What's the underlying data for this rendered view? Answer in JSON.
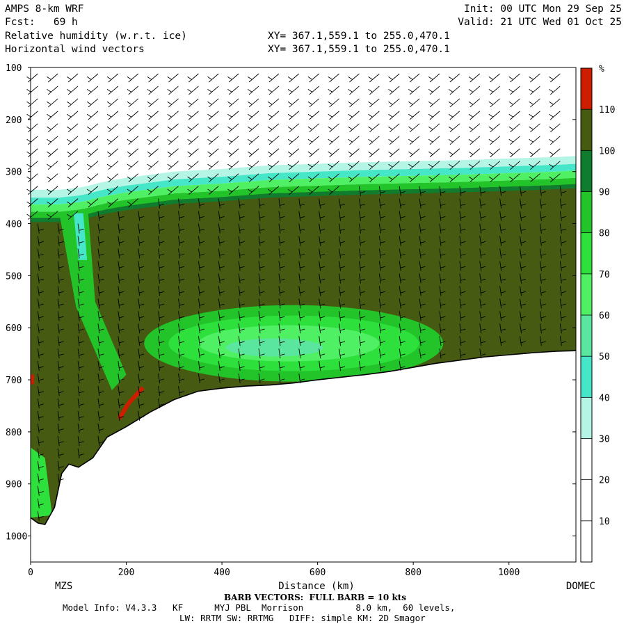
{
  "header": {
    "model": "AMPS 8-km WRF",
    "fcst": "Fcst:   69 h",
    "init": "Init: 00 UTC Mon 29 Sep 25",
    "valid": "Valid: 21 UTC Wed 01 Oct 25",
    "field1": "Relative humidity (w.r.t. ice)",
    "field2": "Horizontal wind vectors",
    "xy1": "XY= 367.1,559.1 to 255.0,470.1",
    "xy2": "XY= 367.1,559.1 to 255.0,470.1"
  },
  "footer": {
    "barb_note": "BARB VECTORS:  FULL BARB = 10 kts",
    "model_info": "Model Info: V4.3.3   KF      MYJ PBL  Morrison          8.0 km,  60 levels,",
    "physics": "LW: RRTM SW: RRTMG   DIFF: simple KM: 2D Smagor"
  },
  "colors": {
    "band_0_30": "#ffffff",
    "band_30_40": "#b4f5e6",
    "band_40_50": "#46e6c8",
    "band_50_60": "#5ae69e",
    "band_60_70": "#50f064",
    "band_70_80": "#2ee03c",
    "band_80_90": "#22c42a",
    "band_90_100": "#0f7d2d",
    "band_100_110": "#465a12",
    "band_110_plus": "#cd1e00",
    "terrain": "#ffffff"
  },
  "chart_data": {
    "type": "heatmap",
    "title": "Relative humidity (w.r.t. ice)",
    "xlabel": "Distance (km)",
    "ylabel": "",
    "x_range": [
      0,
      1140
    ],
    "y_range": [
      1050,
      100
    ],
    "y_scale": "pressure (inverted)",
    "x_ticks": [
      0,
      200,
      400,
      600,
      800,
      1000
    ],
    "y_ticks": [
      100,
      200,
      300,
      400,
      500,
      600,
      700,
      800,
      900,
      1000
    ],
    "endpoints": {
      "start": "MZS",
      "end": "DOMEC"
    },
    "colorbar": {
      "unit": "%",
      "levels": [
        10,
        20,
        30,
        40,
        50,
        60,
        70,
        80,
        90,
        100,
        110
      ]
    },
    "surface_pressure": {
      "x": [
        0,
        15,
        30,
        50,
        65,
        80,
        100,
        130,
        160,
        200,
        250,
        300,
        350,
        400,
        450,
        500,
        550,
        600,
        650,
        700,
        750,
        800,
        850,
        900,
        950,
        1000,
        1050,
        1100,
        1140
      ],
      "p": [
        965,
        975,
        978,
        945,
        880,
        862,
        868,
        850,
        810,
        790,
        762,
        738,
        722,
        716,
        712,
        710,
        706,
        700,
        695,
        690,
        684,
        676,
        668,
        662,
        656,
        652,
        648,
        645,
        644
      ]
    },
    "moist_layer_top_pressure": {
      "x": [
        0,
        60,
        110,
        150,
        200,
        260,
        300,
        400,
        500,
        600,
        700,
        800,
        900,
        1000,
        1100,
        1140
      ],
      "p": [
        375,
        375,
        370,
        360,
        352,
        345,
        340,
        335,
        328,
        325,
        322,
        320,
        318,
        315,
        312,
        310
      ]
    },
    "dry_pocket_center": {
      "x": 550,
      "p": 630,
      "rh_min": 50
    }
  }
}
